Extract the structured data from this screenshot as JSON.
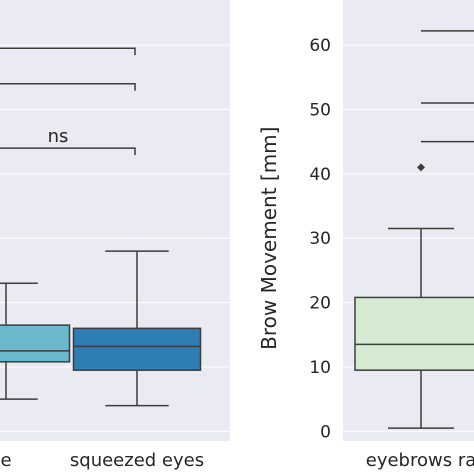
{
  "chart_data": [
    {
      "type": "box",
      "categories": [
        "e",
        "squeezed eyes"
      ],
      "tick_labels": [
        "e",
        "squeezed eyes"
      ],
      "boxes": [
        {
          "label": "e",
          "q1": 10.8,
          "median": 12.5,
          "q3": 16.5,
          "whisker_low": 5.0,
          "whisker_high": 23.0,
          "color": "#6ab9cd"
        },
        {
          "label": "squeezed eyes",
          "q1": 9.5,
          "median": 13.2,
          "q3": 16.0,
          "whisker_low": 4.0,
          "whisker_high": 28.0,
          "color": "#2e7db4"
        }
      ],
      "significance": [
        {
          "label": "",
          "value": 59.5
        },
        {
          "label": "",
          "value": 54.0
        },
        {
          "label": "ns",
          "value": 44.0
        }
      ],
      "grid": true,
      "background": "#eaeaf2"
    },
    {
      "type": "box",
      "ylabel": "Brow Movement [mm]",
      "ylim": [
        -1.5,
        67
      ],
      "yticks": [
        "0",
        "10",
        "20",
        "30",
        "40",
        "50",
        "60"
      ],
      "categories": [
        "eyebrows ra"
      ],
      "tick_labels": [
        "eyebrows ra"
      ],
      "boxes": [
        {
          "label": "eyebrows ra",
          "q1": 9.5,
          "median": 13.5,
          "q3": 20.8,
          "whisker_low": 0.5,
          "whisker_high": 31.5,
          "outliers": [
            41.0
          ],
          "color": "#d5ebd1"
        }
      ],
      "significance": [
        {
          "label": "",
          "value": 62.2
        },
        {
          "label": "",
          "value": 51.0
        },
        {
          "label": "",
          "value": 45.0
        }
      ],
      "grid": true,
      "background": "#eaeaf2"
    }
  ]
}
